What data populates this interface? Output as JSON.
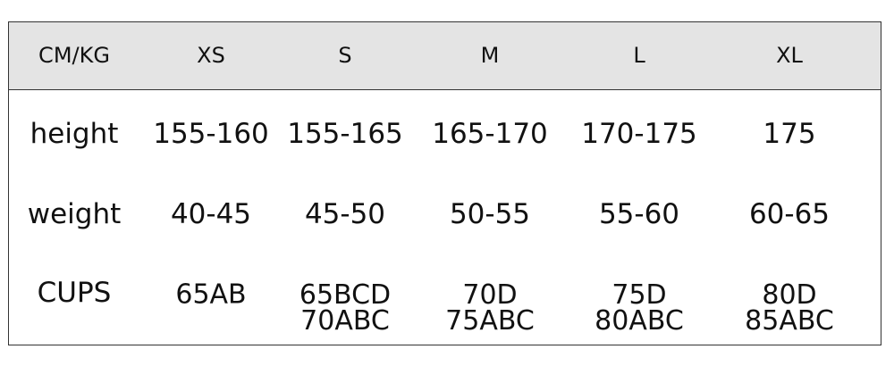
{
  "table": {
    "headers": [
      "CM/KG",
      "XS",
      "S",
      "M",
      "L",
      "XL"
    ],
    "rows": [
      {
        "label": "height",
        "values": [
          "155-160",
          "155-165",
          "165-170",
          "170-175",
          "175"
        ]
      },
      {
        "label": "weight",
        "values": [
          "40-45",
          "45-50",
          "50-55",
          "55-60",
          "60-65"
        ]
      },
      {
        "label": "CUPS",
        "values": [
          [
            "65AB"
          ],
          [
            "65BCD",
            "70ABC"
          ],
          [
            "70D",
            "75ABC"
          ],
          [
            "75D",
            "80ABC"
          ],
          [
            "80D",
            "85ABC"
          ]
        ]
      }
    ],
    "header_bg": "#e4e4e4",
    "border_color": "#333333"
  }
}
